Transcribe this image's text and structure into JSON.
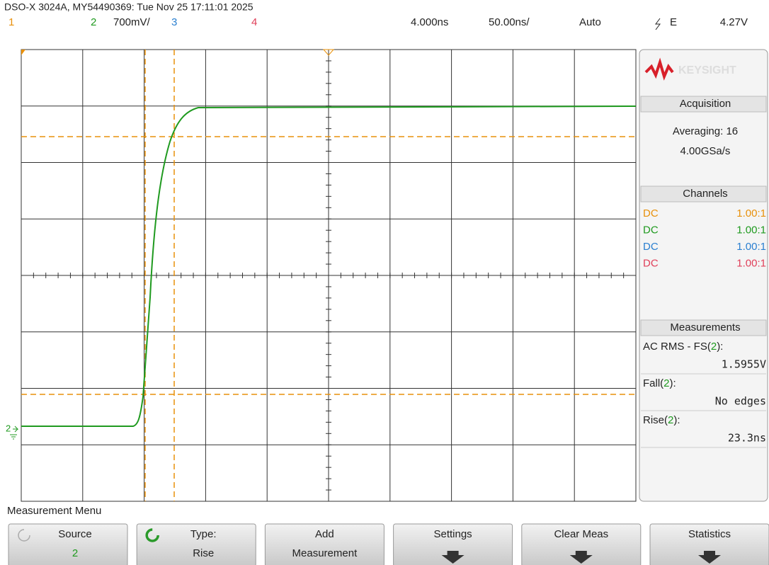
{
  "header": {
    "title": "DSO-X 3024A, MY54490369: Tue Nov 25 17:11:01 2025"
  },
  "channel_bar": {
    "ch1": "1",
    "ch2": "2",
    "ch2_scale": "700mV/",
    "ch3": "3",
    "ch4": "4",
    "delay": "4.000ns",
    "timebase": "50.00ns/",
    "trigger_mode": "Auto",
    "trigger_type": "E",
    "trigger_level": "4.27V"
  },
  "ground_marker": "2",
  "panel": {
    "logo": "KEYSIGHT",
    "acquisition": {
      "title": "Acquisition",
      "mode": "Averaging: 16",
      "rate": "4.00GSa/s"
    },
    "channels": {
      "title": "Channels",
      "rows": [
        {
          "coupling": "DC",
          "probe": "1.00:1"
        },
        {
          "coupling": "DC",
          "probe": "1.00:1"
        },
        {
          "coupling": "DC",
          "probe": "1.00:1"
        },
        {
          "coupling": "DC",
          "probe": "1.00:1"
        }
      ]
    },
    "measurements": {
      "title": "Measurements",
      "items": [
        {
          "prefix": "AC RMS - FS(",
          "channel": "2",
          "suffix": "):",
          "value": "1.5955V"
        },
        {
          "prefix": "Fall(",
          "channel": "2",
          "suffix": "):",
          "value": "No edges"
        },
        {
          "prefix": "Rise(",
          "channel": "2",
          "suffix": "):",
          "value": "23.3ns"
        }
      ]
    }
  },
  "menu": {
    "title": "Measurement Menu",
    "buttons": [
      {
        "line1": "Source",
        "line2": "2"
      },
      {
        "line1": "Type:",
        "line2": "Rise"
      },
      {
        "line1": "Add",
        "line2": "Measurement"
      },
      {
        "line1": "Settings"
      },
      {
        "line1": "Clear Meas"
      },
      {
        "line1": "Statistics"
      }
    ]
  }
}
